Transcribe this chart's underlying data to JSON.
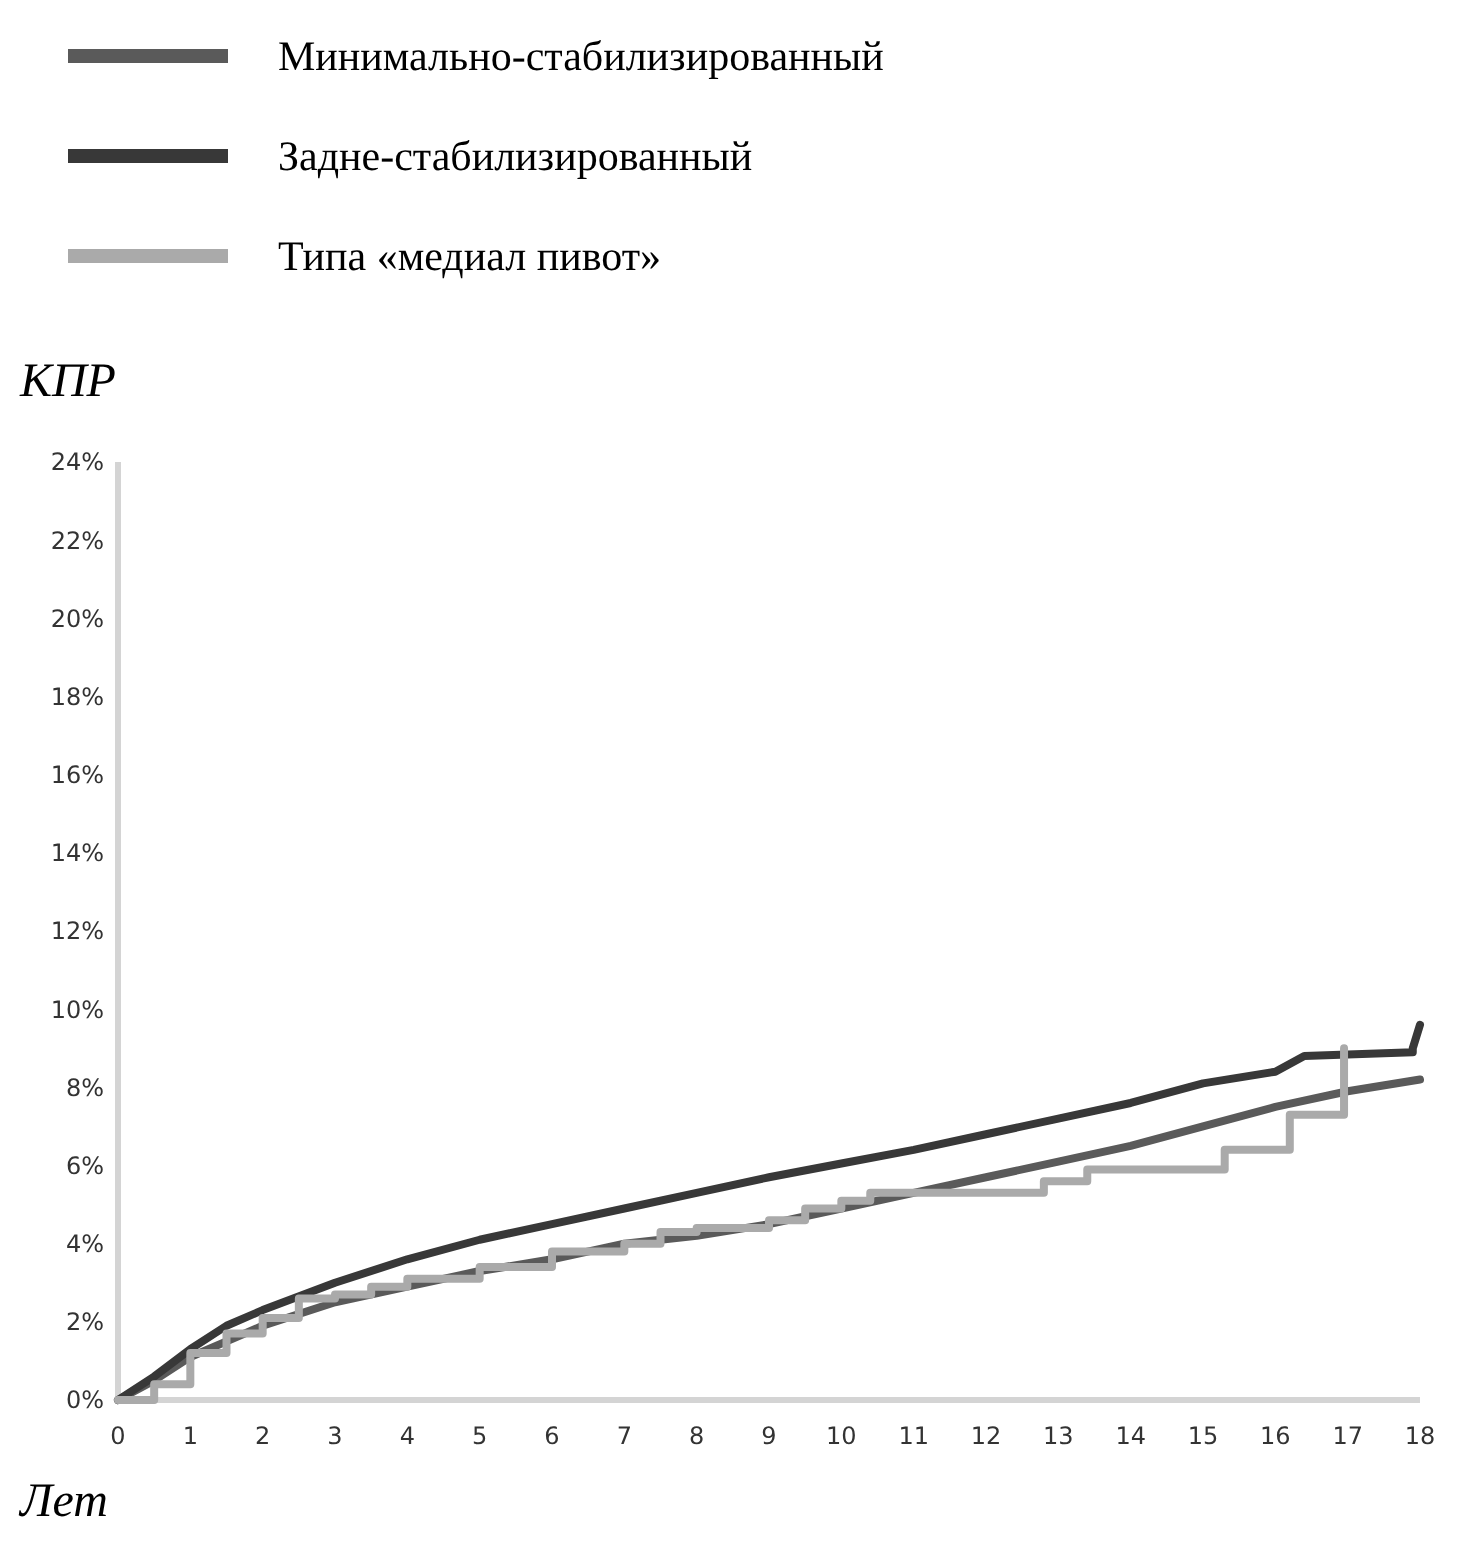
{
  "chart_data": {
    "type": "line",
    "xlabel": "Лет",
    "ylabel": "КПР",
    "legend": "top left",
    "xlim": [
      0,
      18
    ],
    "xticks": [
      0,
      1,
      2,
      3,
      4,
      5,
      6,
      7,
      8,
      9,
      10,
      11,
      12,
      13,
      14,
      15,
      16,
      17,
      18
    ],
    "ylim": [
      0,
      24
    ],
    "yticks": [
      {
        "value": 0,
        "label": "0%"
      },
      {
        "value": 2,
        "label": "2%"
      },
      {
        "value": 4,
        "label": "4%"
      },
      {
        "value": 6,
        "label": "6%"
      },
      {
        "value": 8,
        "label": "8%"
      },
      {
        "value": 10,
        "label": "10%"
      },
      {
        "value": 12,
        "label": "12%"
      },
      {
        "value": 14,
        "label": "14%"
      },
      {
        "value": 16,
        "label": "16%"
      },
      {
        "value": 18,
        "label": "18%"
      },
      {
        "value": 20,
        "label": "20%"
      },
      {
        "value": 22,
        "label": "22%"
      },
      {
        "value": 24,
        "label": "24%"
      }
    ],
    "series": [
      {
        "name": "Минимально-стабилизированный",
        "color": "#5a5a5a",
        "x": [
          0,
          0.5,
          1,
          1.5,
          2,
          3,
          4,
          5,
          6,
          7,
          8,
          9,
          10,
          11,
          12,
          13,
          14,
          15,
          16,
          17,
          18
        ],
        "values": [
          0,
          0.5,
          1.1,
          1.5,
          1.9,
          2.5,
          2.9,
          3.3,
          3.6,
          4.0,
          4.2,
          4.5,
          4.9,
          5.3,
          5.7,
          6.1,
          6.5,
          7.0,
          7.5,
          7.9,
          8.2
        ]
      },
      {
        "name": "Задне-стабилизированный",
        "color": "#383838",
        "x": [
          0,
          0.5,
          1,
          1.5,
          2,
          3,
          4,
          5,
          6,
          7,
          8,
          9,
          10,
          11,
          12,
          13,
          14,
          15,
          16,
          16.4,
          17.9,
          17.9,
          18
        ],
        "values": [
          0,
          0.6,
          1.3,
          1.9,
          2.3,
          3.0,
          3.6,
          4.1,
          4.5,
          4.9,
          5.3,
          5.7,
          6.05,
          6.4,
          6.8,
          7.2,
          7.6,
          8.1,
          8.4,
          8.8,
          8.9,
          9.0,
          9.6
        ]
      },
      {
        "name": "Типа «медиал пивот»",
        "type": "step",
        "color": "#aaaaaa",
        "x": [
          0,
          0.5,
          1,
          1.5,
          2,
          2.5,
          3,
          3.5,
          4,
          5,
          6,
          7,
          7.5,
          8,
          9,
          9.5,
          10,
          10.4,
          12.8,
          13.4,
          15.3,
          16.2,
          16.95
        ],
        "values": [
          0,
          0.4,
          1.2,
          1.7,
          2.1,
          2.6,
          2.7,
          2.9,
          3.1,
          3.4,
          3.8,
          4.0,
          4.3,
          4.4,
          4.6,
          4.9,
          5.1,
          5.3,
          5.6,
          5.9,
          6.4,
          7.3,
          9.0
        ]
      }
    ]
  }
}
